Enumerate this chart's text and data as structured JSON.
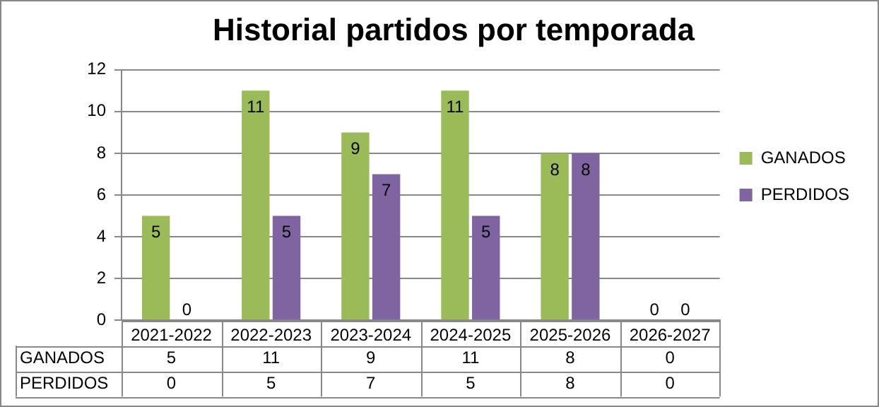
{
  "chart_data": {
    "type": "bar",
    "title": "Historial partidos por temporada",
    "categories": [
      "2021-2022",
      "2022-2023",
      "2023-2024",
      "2024-2025",
      "2025-2026",
      "2026-2027"
    ],
    "series": [
      {
        "name": "GANADOS",
        "color": "#9bbb59",
        "values": [
          5,
          11,
          9,
          11,
          8,
          0
        ]
      },
      {
        "name": "PERDIDOS",
        "color": "#8064a2",
        "values": [
          0,
          5,
          7,
          5,
          8,
          0
        ]
      }
    ],
    "annotations": [
      {
        "text": "5",
        "x": "2021-2022",
        "y": 5
      },
      {
        "text": "0",
        "x": "2021-2022",
        "y": 0
      },
      {
        "text": "11",
        "x": "2022-2023",
        "y": 11
      },
      {
        "text": "5",
        "x": "2022-2023",
        "y": 5
      },
      {
        "text": "9",
        "x": "2023-2024",
        "y": 9
      },
      {
        "text": "7",
        "x": "2023-2024",
        "y": 7
      },
      {
        "text": "11",
        "x": "2024-2025",
        "y": 11
      },
      {
        "text": "5",
        "x": "2024-2025",
        "y": 5
      },
      {
        "text": "8",
        "x": "2025-2026",
        "y": 8
      },
      {
        "text": "8",
        "x": "2025-2026",
        "y": 8
      },
      {
        "text": "0",
        "x": "2026-2027",
        "y": 0
      },
      {
        "text": "0",
        "x": "2026-2027",
        "y": 0
      }
    ],
    "ylim": [
      0,
      12
    ],
    "yticks": [
      0,
      2,
      4,
      6,
      8,
      10,
      12
    ],
    "grid": "y",
    "legend": "right",
    "data_labels": true
  }
}
